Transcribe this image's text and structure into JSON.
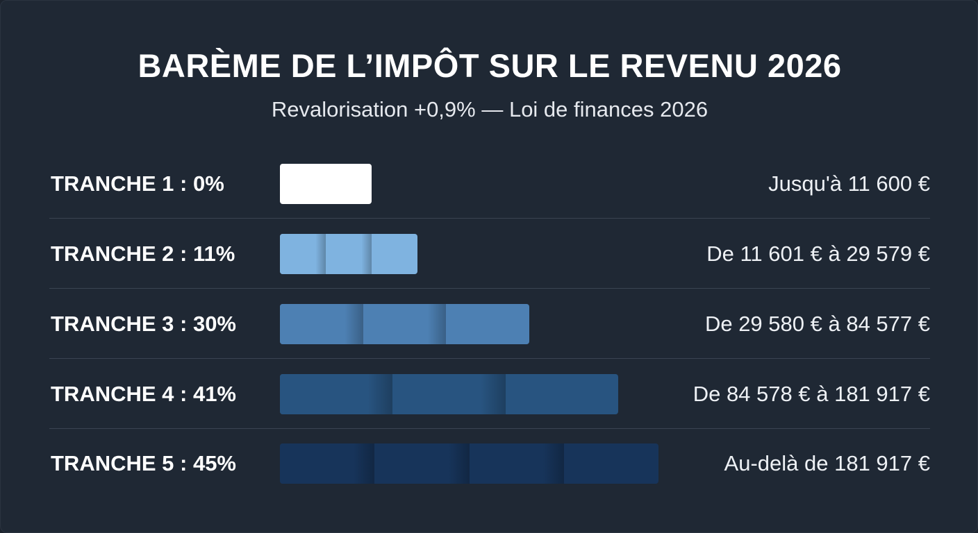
{
  "chart_data": {
    "type": "bar",
    "title": "BARÈME DE L’IMPÔT SUR LE REVENU 2026",
    "subtitle": "Revalorisation +0,9% — Loi de finances 2026",
    "categories": [
      "TRANCHE 1 : 0%",
      "TRANCHE 2 : 11%",
      "TRANCHE 3 : 30%",
      "TRANCHE 4 : 41%",
      "TRANCHE 5 : 45%"
    ],
    "values": [
      0,
      11,
      30,
      41,
      45
    ],
    "ranges": [
      "Jusqu'à 11 600 €",
      "De 11 601 € à 29 579 €",
      "De 29 580 € à 84 577 €",
      "De 84 578 € à 181 917 €",
      "Au-delà de 181 917 €"
    ],
    "colors": [
      "#ffffff",
      "#7fb3e0",
      "#4d80b3",
      "#285480",
      "#17345a"
    ],
    "xlabel": "",
    "ylabel": "",
    "unit": "%"
  }
}
